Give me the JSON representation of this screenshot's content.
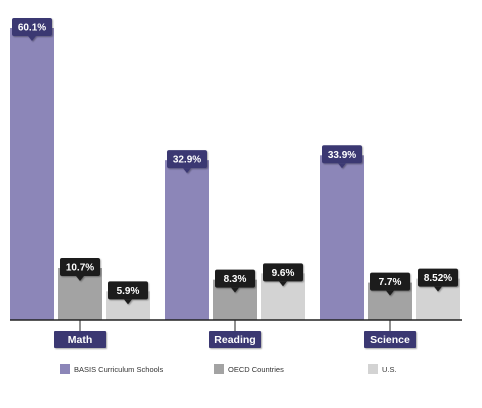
{
  "chart_data": {
    "type": "bar",
    "categories": [
      "Math",
      "Reading",
      "Science"
    ],
    "series": [
      {
        "name": "BASIS Curriculum Schools",
        "values": [
          60.1,
          32.9,
          33.9
        ],
        "labels": [
          "60.1%",
          "32.9%",
          "33.9%"
        ],
        "color": "#8c86b8",
        "label_bg": "#3b3872",
        "label_fg": "#ffffff"
      },
      {
        "name": "OECD Countries",
        "values": [
          10.7,
          8.3,
          7.7
        ],
        "labels": [
          "10.7%",
          "8.3%",
          "7.7%"
        ],
        "color": "#a3a3a3",
        "label_bg": "#1c1c1c",
        "label_fg": "#ffffff"
      },
      {
        "name": "U.S.",
        "values": [
          5.9,
          9.6,
          8.52
        ],
        "labels": [
          "5.9%",
          "9.6%",
          "8.52%"
        ],
        "color": "#d3d3d3",
        "label_bg": "#1c1c1c",
        "label_fg": "#ffffff"
      }
    ],
    "category_label_bg": "#3b3872",
    "ylim": [
      0,
      60.1
    ],
    "grid": false,
    "legend": "bottom"
  }
}
